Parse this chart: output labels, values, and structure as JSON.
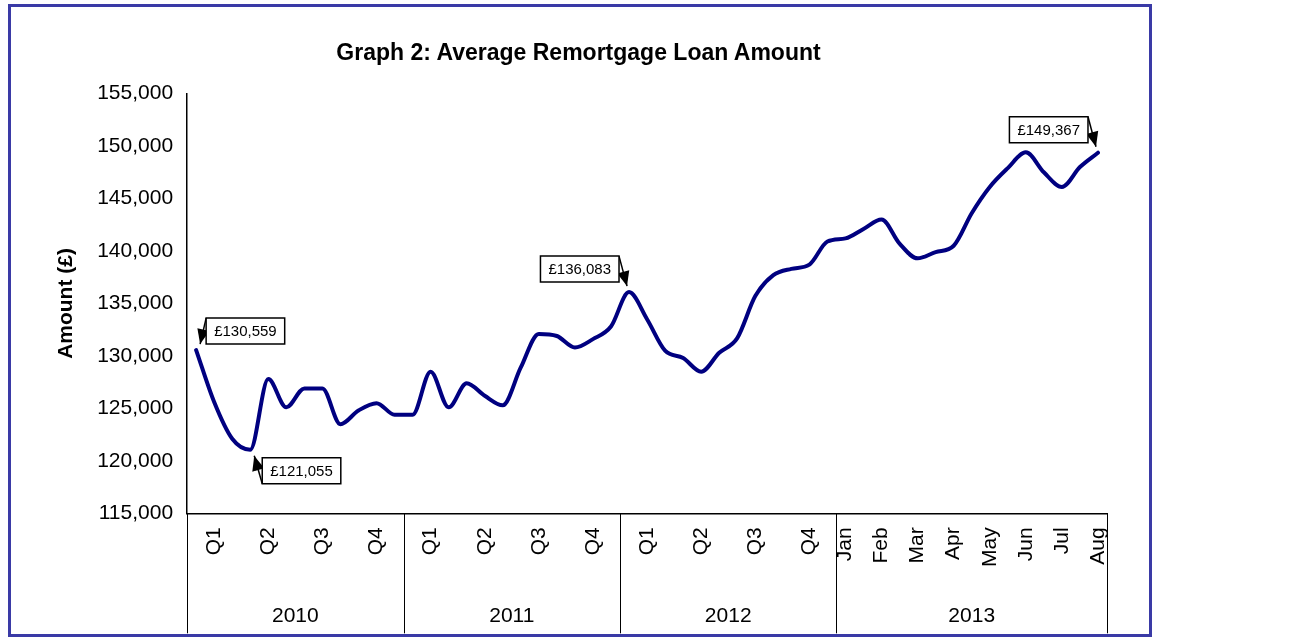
{
  "chart_data": {
    "type": "line",
    "title": "Graph 2: Average Remortgage Loan Amount",
    "ylabel": "Amount (£)",
    "categories": [
      null,
      "Q1",
      null,
      null,
      "Q2",
      null,
      null,
      "Q3",
      null,
      null,
      "Q4",
      null,
      null,
      "Q1",
      null,
      null,
      "Q2",
      null,
      null,
      "Q3",
      null,
      null,
      "Q4",
      null,
      null,
      "Q1",
      null,
      null,
      "Q2",
      null,
      null,
      "Q3",
      null,
      null,
      "Q4",
      null,
      "Jan",
      null,
      "Feb",
      null,
      "Mar",
      null,
      "Apr",
      null,
      "May",
      null,
      "Jun",
      null,
      "Jul",
      null,
      "Aug"
    ],
    "series": [
      {
        "color": "#000080",
        "values": [
          130559,
          125600,
          122100,
          121055,
          127800,
          125100,
          126900,
          126900,
          123500,
          124800,
          125500,
          124400,
          124400,
          128500,
          125100,
          127400,
          126200,
          125300,
          128900,
          132100,
          131900,
          130800,
          131600,
          132800,
          136083,
          133500,
          130500,
          129800,
          128500,
          130300,
          131700,
          135700,
          137700,
          138300,
          138700,
          140900,
          141200,
          142100,
          143000,
          140700,
          139300,
          139900,
          140500,
          143600,
          146100,
          147900,
          149400,
          147500,
          146100,
          148000,
          149367
        ],
        "value_labels": [
          "£130,559",
          null,
          null,
          "£121,055",
          null,
          null,
          null,
          null,
          null,
          null,
          null,
          null,
          null,
          null,
          null,
          null,
          null,
          null,
          null,
          null,
          null,
          null,
          null,
          null,
          "£136,083",
          null,
          null,
          null,
          null,
          null,
          null,
          null,
          null,
          null,
          null,
          null,
          null,
          null,
          null,
          null,
          null,
          null,
          null,
          null,
          null,
          null,
          null,
          null,
          null,
          null,
          "£149,367"
        ]
      }
    ],
    "ylim": [
      115000,
      155000
    ],
    "yticks": [
      {
        "value": 115000,
        "label": "115,000"
      },
      {
        "value": 120000,
        "label": "120,000"
      },
      {
        "value": 125000,
        "label": "125,000"
      },
      {
        "value": 130000,
        "label": "130,000"
      },
      {
        "value": 135000,
        "label": "135,000"
      },
      {
        "value": 140000,
        "label": "140,000"
      },
      {
        "value": 145000,
        "label": "145,000"
      },
      {
        "value": 150000,
        "label": "150,000"
      },
      {
        "value": 155000,
        "label": "155,000"
      }
    ],
    "grid": false,
    "legend": false,
    "marker": "none",
    "line_style": "solid",
    "annotations": [
      "2010",
      "2011",
      "2012",
      "2013"
    ]
  }
}
